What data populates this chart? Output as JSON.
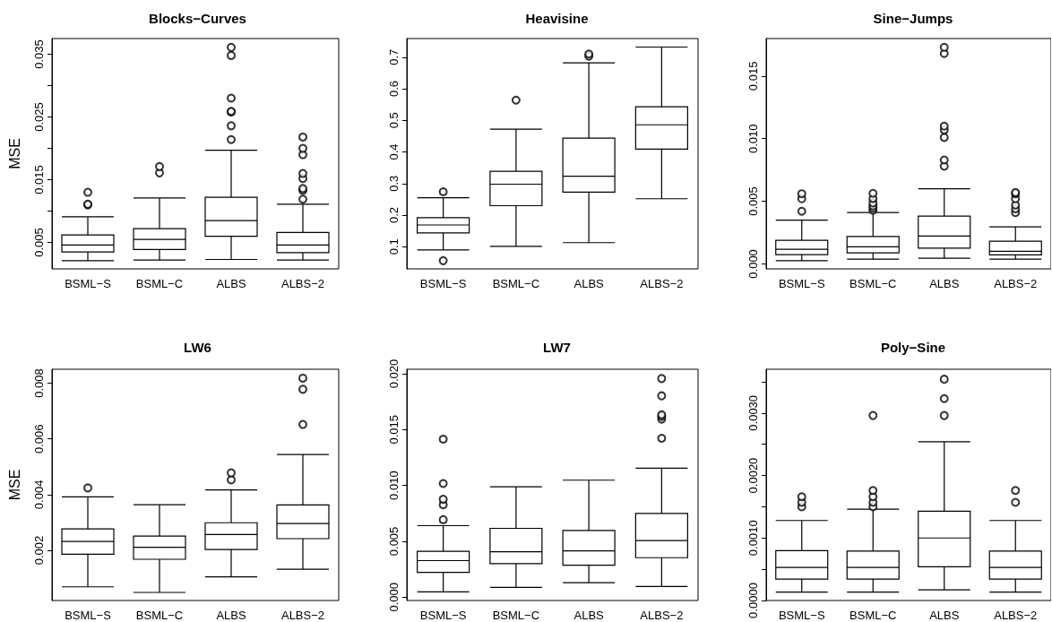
{
  "chart_data": [
    {
      "type": "box",
      "title": "Blocks−Curves",
      "ylabel": "MSE",
      "categories": [
        "BSML−S",
        "BSML−C",
        "ALBS",
        "ALBS−2"
      ],
      "ylim": [
        0.0008,
        0.0375
      ],
      "yticks": [
        {
          "value": 0.005,
          "label": "0.005"
        },
        {
          "value": 0.01,
          "label": null
        },
        {
          "value": 0.015,
          "label": "0.015"
        },
        {
          "value": 0.02,
          "label": null
        },
        {
          "value": 0.025,
          "label": "0.025"
        },
        {
          "value": 0.03,
          "label": null
        },
        {
          "value": 0.035,
          "label": "0.035"
        }
      ],
      "series": [
        {
          "color": "#000000",
          "boxes": [
            {
              "low": 0.0021,
              "q1": 0.0035,
              "median": 0.0046,
              "q3": 0.0062,
              "high": 0.0091,
              "outliers": [
                0.011,
                0.0111,
                0.013
              ]
            },
            {
              "low": 0.0022,
              "q1": 0.0039,
              "median": 0.0055,
              "q3": 0.0072,
              "high": 0.0121,
              "outliers": [
                0.0161,
                0.0171
              ]
            },
            {
              "low": 0.0023,
              "q1": 0.006,
              "median": 0.0085,
              "q3": 0.0122,
              "high": 0.0197,
              "outliers": [
                0.0214,
                0.0236,
                0.0258,
                0.0259,
                0.028,
                0.0348,
                0.0361
              ]
            },
            {
              "low": 0.0022,
              "q1": 0.0034,
              "median": 0.0046,
              "q3": 0.0066,
              "high": 0.0111,
              "outliers": [
                0.0119,
                0.0133,
                0.0136,
                0.0152,
                0.016,
                0.019,
                0.02,
                0.0218
              ]
            }
          ]
        }
      ]
    },
    {
      "type": "box",
      "title": "Heavisine",
      "categories": [
        "BSML−S",
        "BSML−C",
        "ALBS",
        "ALBS−2"
      ],
      "ylim": [
        0.03,
        0.759
      ],
      "yticks": [
        0.1,
        0.2,
        0.3,
        0.4,
        0.5,
        0.6,
        0.7
      ],
      "series": [
        {
          "color": "#000000",
          "boxes": [
            {
              "low": 0.09,
              "q1": 0.144,
              "median": 0.169,
              "q3": 0.192,
              "high": 0.255,
              "outliers": [
                0.274,
                0.056
              ]
            },
            {
              "low": 0.101,
              "q1": 0.23,
              "median": 0.298,
              "q3": 0.339,
              "high": 0.472,
              "outliers": [
                0.564
              ]
            },
            {
              "low": 0.113,
              "q1": 0.273,
              "median": 0.323,
              "q3": 0.444,
              "high": 0.682,
              "outliers": [
                0.703,
                0.71
              ]
            },
            {
              "low": 0.252,
              "q1": 0.409,
              "median": 0.486,
              "q3": 0.543,
              "high": 0.732
            }
          ]
        }
      ]
    },
    {
      "type": "box",
      "title": "Sine−Jumps",
      "categories": [
        "BSML−S",
        "BSML−C",
        "ALBS",
        "ALBS−2"
      ],
      "ylim": [
        -0.0004,
        0.018
      ],
      "yticks": [
        {
          "value": 0,
          "label": "0.000"
        },
        {
          "value": 0.005,
          "label": "0.005"
        },
        {
          "value": 0.01,
          "label": "0.010"
        },
        {
          "value": 0.015,
          "label": "0.015"
        }
      ],
      "series": [
        {
          "color": "#000000",
          "boxes": [
            {
              "low": 0.00026,
              "q1": 0.00074,
              "median": 0.00117,
              "q3": 0.00188,
              "high": 0.0035,
              "outliers": [
                0.0042,
                0.0052,
                0.0056
              ]
            },
            {
              "low": 0.00038,
              "q1": 0.00088,
              "median": 0.00136,
              "q3": 0.00219,
              "high": 0.0041,
              "outliers": [
                0.00427,
                0.00446,
                0.00463,
                0.00487,
                0.00522,
                0.00563
              ]
            },
            {
              "low": 0.00045,
              "q1": 0.00126,
              "median": 0.00222,
              "q3": 0.00382,
              "high": 0.006,
              "outliers": [
                0.0078,
                0.0083,
                0.0101,
                0.0107,
                0.011,
                0.0168,
                0.0173
              ]
            },
            {
              "low": 0.00038,
              "q1": 0.00072,
              "median": 0.001,
              "q3": 0.00181,
              "high": 0.00296,
              "outliers": [
                0.0041,
                0.0044,
                0.0047,
                0.0052,
                0.0056,
                0.0057
              ]
            }
          ]
        }
      ]
    },
    {
      "type": "box",
      "title": "LW6",
      "ylabel": "MSE",
      "categories": [
        "BSML−S",
        "BSML−C",
        "ALBS",
        "ALBS−2"
      ],
      "ylim": [
        0.0002,
        0.0085
      ],
      "yticks": [
        0.002,
        0.004,
        0.006,
        0.008
      ],
      "series": [
        {
          "color": "#000000",
          "boxes": [
            {
              "low": 0.00069,
              "q1": 0.00186,
              "median": 0.00232,
              "q3": 0.00277,
              "high": 0.00392,
              "outliers": [
                0.00424
              ]
            },
            {
              "low": 0.00049,
              "q1": 0.00168,
              "median": 0.00211,
              "q3": 0.00251,
              "high": 0.00364
            },
            {
              "low": 0.00105,
              "q1": 0.00203,
              "median": 0.00257,
              "q3": 0.00299,
              "high": 0.00417,
              "outliers": [
                0.00453,
                0.00478
              ]
            },
            {
              "low": 0.00132,
              "q1": 0.00242,
              "median": 0.00296,
              "q3": 0.00363,
              "high": 0.00544,
              "outliers": [
                0.00652,
                0.00778,
                0.00818
              ]
            }
          ]
        }
      ]
    },
    {
      "type": "box",
      "title": "LW7",
      "categories": [
        "BSML−S",
        "BSML−C",
        "ALBS",
        "ALBS−2"
      ],
      "ylim": [
        -0.0003,
        0.0204
      ],
      "yticks": [
        {
          "value": 0,
          "label": "0.000"
        },
        {
          "value": 0.005,
          "label": "0.005"
        },
        {
          "value": 0.01,
          "label": "0.010"
        },
        {
          "value": 0.015,
          "label": "0.015"
        },
        {
          "value": 0.02,
          "label": "0.020"
        }
      ],
      "series": [
        {
          "color": "#000000",
          "boxes": [
            {
              "low": 0.00048,
              "q1": 0.00222,
              "median": 0.00327,
              "q3": 0.0041,
              "high": 0.0064,
              "outliers": [
                0.00693,
                0.00827,
                0.00876,
                0.01017,
                0.01414
              ]
            },
            {
              "low": 0.00088,
              "q1": 0.003,
              "median": 0.00407,
              "q3": 0.00616,
              "high": 0.00988
            },
            {
              "low": 0.00129,
              "q1": 0.00286,
              "median": 0.00415,
              "q3": 0.00597,
              "high": 0.01047
            },
            {
              "low": 0.00096,
              "q1": 0.00353,
              "median": 0.00506,
              "q3": 0.0075,
              "high": 0.01154,
              "outliers": [
                0.01422,
                0.01593,
                0.01617,
                0.01633,
                0.01802,
                0.01957
              ]
            }
          ]
        }
      ]
    },
    {
      "type": "box",
      "title": "Poly−Sine",
      "categories": [
        "BSML−S",
        "BSML−C",
        "ALBS",
        "ALBS−2"
      ],
      "ylim": [
        0,
        0.0037
      ],
      "yticks": [
        {
          "value": 0,
          "label": "0.0000"
        },
        {
          "value": 0.0005,
          "label": null
        },
        {
          "value": 0.001,
          "label": "0.0010"
        },
        {
          "value": 0.0015,
          "label": null
        },
        {
          "value": 0.002,
          "label": "0.0020"
        },
        {
          "value": 0.0025,
          "label": null
        },
        {
          "value": 0.003,
          "label": "0.0030"
        },
        {
          "value": 0.0035,
          "label": null
        }
      ],
      "series": [
        {
          "color": "#000000",
          "boxes": [
            {
              "low": 0.000134,
              "q1": 0.000343,
              "median": 0.00053,
              "q3": 0.000797,
              "high": 0.00128,
              "outliers": [
                0.0015,
                0.00157,
                0.00166
              ]
            },
            {
              "low": 0.000134,
              "q1": 0.000343,
              "median": 0.00053,
              "q3": 0.00079,
              "high": 0.00146,
              "outliers": [
                0.0015,
                0.00157,
                0.00166,
                0.00176,
                0.00296
              ]
            },
            {
              "low": 0.00017,
              "q1": 0.00054,
              "median": 0.001,
              "q3": 0.00143,
              "high": 0.00254,
              "outliers": [
                0.00296,
                0.00323,
                0.00354
              ]
            },
            {
              "low": 0.000134,
              "q1": 0.000343,
              "median": 0.00053,
              "q3": 0.00079,
              "high": 0.00128,
              "outliers": [
                0.00157,
                0.00176
              ]
            }
          ]
        }
      ]
    }
  ]
}
